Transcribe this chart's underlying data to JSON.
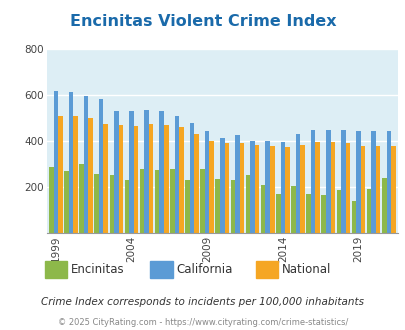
{
  "title": "Encinitas Violent Crime Index",
  "title_color": "#1a6aaa",
  "subtitle": "Crime Index corresponds to incidents per 100,000 inhabitants",
  "footer": "© 2025 CityRating.com - https://www.cityrating.com/crime-statistics/",
  "years": [
    1999,
    2000,
    2001,
    2002,
    2003,
    2004,
    2005,
    2006,
    2007,
    2008,
    2009,
    2010,
    2011,
    2012,
    2013,
    2014,
    2015,
    2016,
    2017,
    2018,
    2019,
    2020,
    2021
  ],
  "encinitas": [
    285,
    270,
    300,
    255,
    250,
    230,
    280,
    275,
    280,
    230,
    280,
    235,
    230,
    250,
    210,
    170,
    205,
    170,
    165,
    185,
    140,
    190,
    240
  ],
  "california": [
    620,
    615,
    595,
    585,
    530,
    530,
    535,
    530,
    510,
    480,
    445,
    415,
    425,
    400,
    400,
    395,
    430,
    450,
    450,
    450,
    445,
    445,
    445
  ],
  "national": [
    510,
    510,
    500,
    475,
    470,
    465,
    475,
    470,
    460,
    430,
    400,
    390,
    390,
    385,
    380,
    375,
    385,
    395,
    395,
    390,
    380,
    380,
    380
  ],
  "colors": {
    "encinitas": "#8db84a",
    "california": "#5b9bd5",
    "national": "#f5a623"
  },
  "ylim": [
    0,
    800
  ],
  "yticks": [
    200,
    400,
    600,
    800
  ],
  "plot_bg": "#ddeef5",
  "legend_labels": [
    "Encinitas",
    "California",
    "National"
  ],
  "xtick_years": [
    1999,
    2004,
    2009,
    2014,
    2019
  ]
}
